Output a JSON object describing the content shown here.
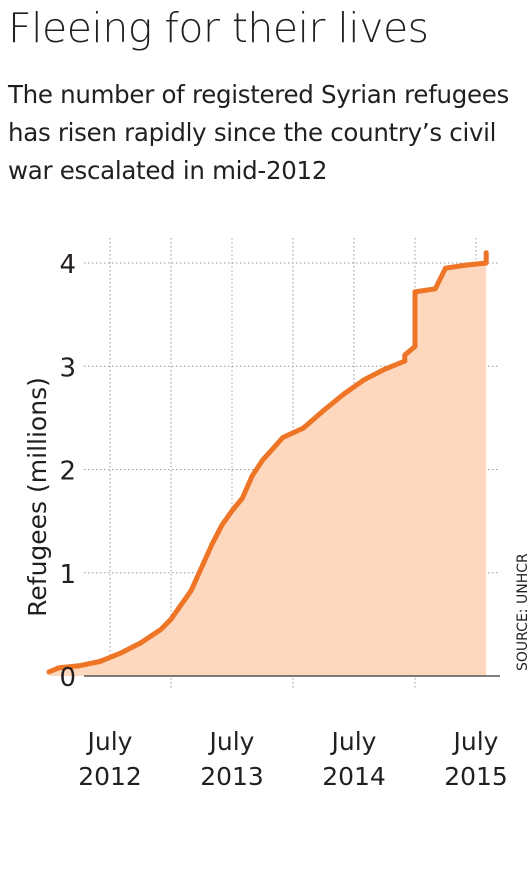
{
  "title": "Fleeing for their lives",
  "subtitle": "The number of registered Syrian refugees has risen rapidly since the country’s civil war escalated in mid-2012",
  "source": "SOURCE: UNHCR",
  "colors": {
    "line": "#ee7526",
    "fill": "#fdd8bf",
    "grid": "#9a9a9a",
    "text": "#231f20"
  },
  "chart_data": {
    "type": "area",
    "ylabel": "Refugees (millions)",
    "ylim": [
      0,
      4
    ],
    "yticks": [
      0,
      1,
      2,
      3,
      4
    ],
    "xlim": [
      "2012-01",
      "2015-09"
    ],
    "xticks": [
      {
        "month": "2012-07",
        "line1": "July",
        "line2": "2012"
      },
      {
        "month": "2013-07",
        "line1": "July",
        "line2": "2013"
      },
      {
        "month": "2014-07",
        "line1": "July",
        "line2": "2014"
      },
      {
        "month": "2015-07",
        "line1": "July",
        "line2": "2015"
      }
    ],
    "grid_minor_x": [
      "2013-01",
      "2014-01",
      "2015-01"
    ],
    "grid": true,
    "series": [
      {
        "x": [
          "2012-01",
          "2012-02",
          "2012-04",
          "2012-06",
          "2012-08",
          "2012-10",
          "2012-12",
          "2013-01",
          "2013-03",
          "2013-04",
          "2013-05",
          "2013-06",
          "2013-07",
          "2013-08",
          "2013-09",
          "2013-10",
          "2013-11",
          "2013-12",
          "2014-02",
          "2014-04",
          "2014-06",
          "2014-08",
          "2014-10",
          "2014-12",
          "2014-12",
          "2015-01",
          "2015-01",
          "2015-03",
          "2015-04",
          "2015-06",
          "2015-08",
          "2015-08"
        ],
        "values": [
          0.04,
          0.08,
          0.1,
          0.14,
          0.22,
          0.32,
          0.45,
          0.55,
          0.83,
          1.05,
          1.27,
          1.46,
          1.6,
          1.72,
          1.94,
          2.09,
          2.2,
          2.31,
          2.4,
          2.57,
          2.73,
          2.87,
          2.97,
          3.05,
          3.11,
          3.19,
          3.72,
          3.75,
          3.95,
          3.98,
          4.0,
          4.1
        ]
      }
    ]
  }
}
